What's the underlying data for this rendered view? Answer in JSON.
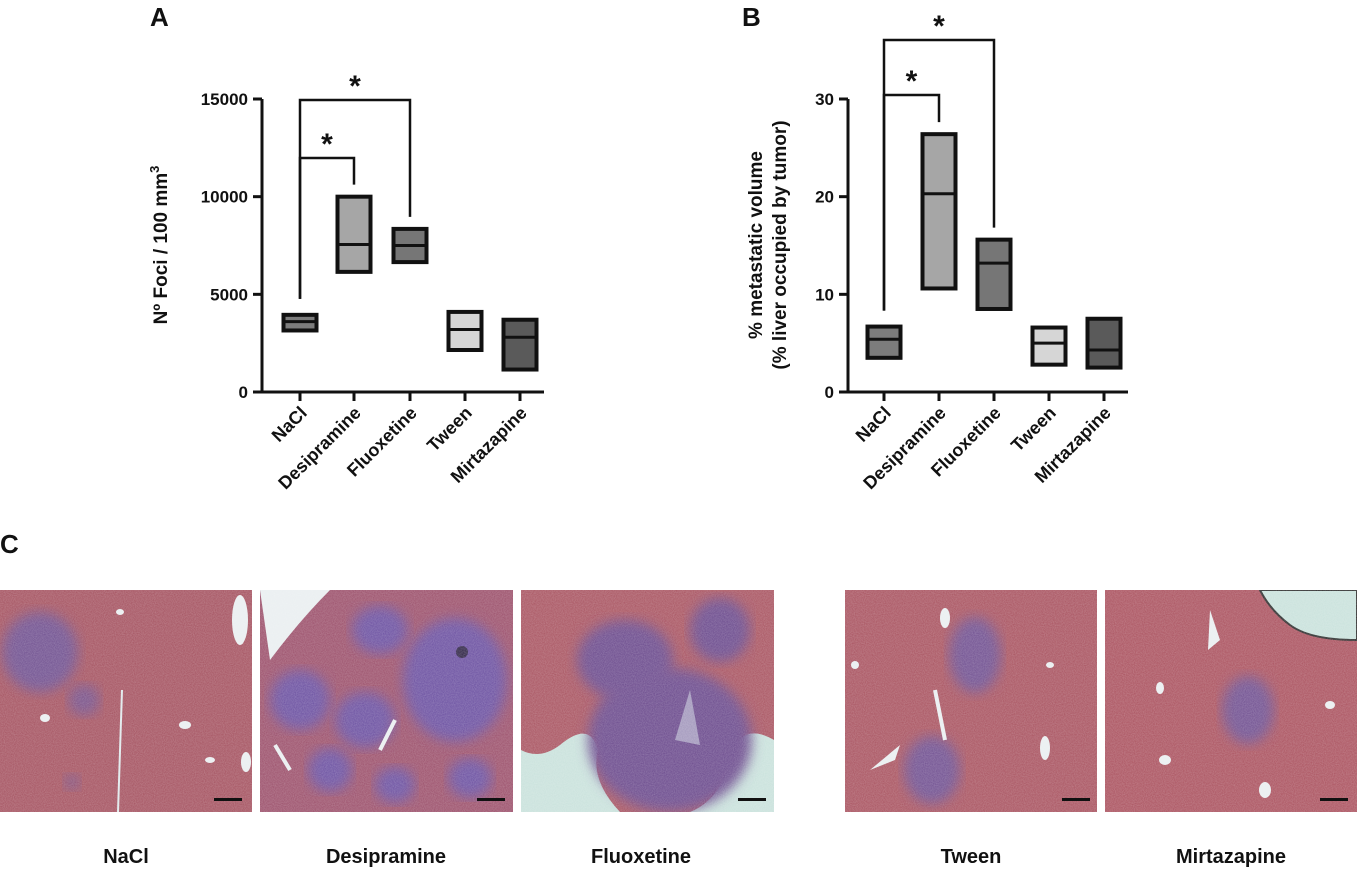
{
  "panels": {
    "a": "A",
    "b": "B",
    "c": "C"
  },
  "colors": {
    "NaCl": "#7c7c7c",
    "Desipramine": "#a6a6a6",
    "Fluoxetine": "#767676",
    "Tween": "#d6d6d6",
    "Mirtazapine": "#5a5a5a",
    "tissue": "#a24f62",
    "tumor": "#6c4f96",
    "background_glass": "#c8e1db"
  },
  "chart_data": [
    {
      "type": "box",
      "panel": "A",
      "ylabel": "Nº Foci / 100 mm",
      "ylabel_superscript": "3",
      "ylim": [
        0,
        15000
      ],
      "yticks": [
        0,
        5000,
        10000,
        15000
      ],
      "categories": [
        "NaCl",
        "Desipramine",
        "Fluoxetine",
        "Tween",
        "Mirtazapine"
      ],
      "boxes": [
        {
          "min": 3150,
          "median": 3600,
          "max": 3950
        },
        {
          "min": 6150,
          "median": 7550,
          "max": 10000
        },
        {
          "min": 6650,
          "median": 7500,
          "max": 8350
        },
        {
          "min": 2150,
          "median": 3200,
          "max": 4100
        },
        {
          "min": 1150,
          "median": 2800,
          "max": 3700
        }
      ],
      "significance": [
        {
          "from": "NaCl",
          "to": "Desipramine",
          "label": "*"
        },
        {
          "from": "NaCl",
          "to": "Fluoxetine",
          "label": "*"
        }
      ]
    },
    {
      "type": "box",
      "panel": "B",
      "ylabel": "% metastatic volume",
      "ylabel_line2": "(% liver occupied by tumor)",
      "ylim": [
        0,
        30
      ],
      "yticks": [
        0,
        10,
        20,
        30
      ],
      "categories": [
        "NaCl",
        "Desipramine",
        "Fluoxetine",
        "Tween",
        "Mirtazapine"
      ],
      "boxes": [
        {
          "min": 3.5,
          "median": 5.4,
          "max": 6.7
        },
        {
          "min": 10.6,
          "median": 20.3,
          "max": 26.4
        },
        {
          "min": 8.5,
          "median": 13.2,
          "max": 15.6
        },
        {
          "min": 2.8,
          "median": 5.0,
          "max": 6.6
        },
        {
          "min": 2.5,
          "median": 4.3,
          "max": 7.5
        }
      ],
      "significance": [
        {
          "from": "NaCl",
          "to": "Desipramine",
          "label": "*"
        },
        {
          "from": "NaCl",
          "to": "Fluoxetine",
          "label": "*"
        }
      ]
    }
  ],
  "micrographs": [
    {
      "label": "NaCl"
    },
    {
      "label": "Desipramine"
    },
    {
      "label": "Fluoxetine"
    },
    {
      "label": "Tween"
    },
    {
      "label": "Mirtazapine"
    }
  ]
}
